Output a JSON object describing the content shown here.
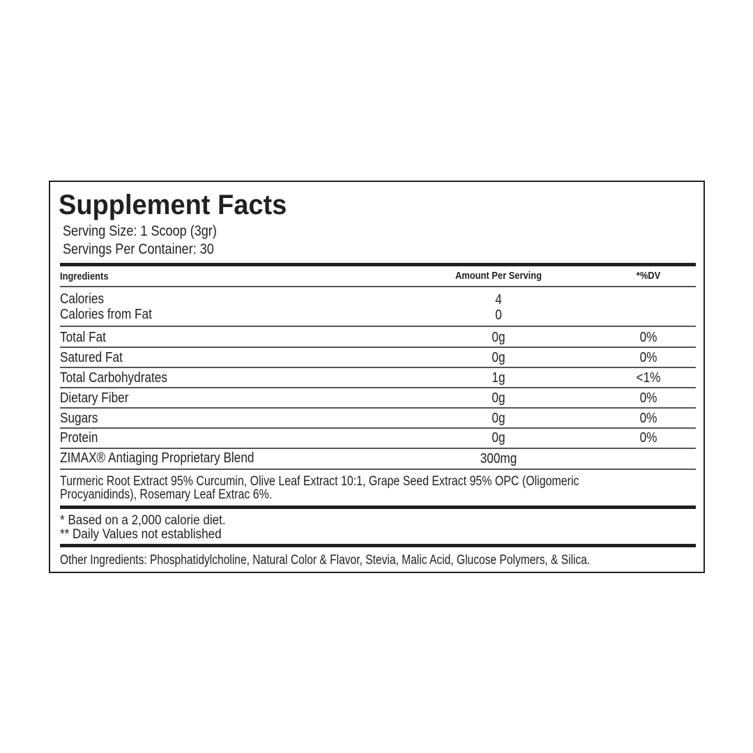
{
  "title": "Supplement Facts",
  "serving_size": "Serving Size: 1 Scoop (3gr)",
  "servings_per_container": "Servings Per Container: 30",
  "headers": {
    "ingredients": "Ingredients",
    "amount": "Amount Per Serving",
    "dv": "*%DV"
  },
  "rows": [
    {
      "name": "Calories",
      "amount": "4",
      "dv": ""
    },
    {
      "name": "Calories from Fat",
      "amount": "0",
      "dv": ""
    },
    {
      "name": "Total Fat",
      "amount": "0g",
      "dv": "0%"
    },
    {
      "name": "Satured Fat",
      "amount": "0g",
      "dv": "0%"
    },
    {
      "name": "Total Carbohydrates",
      "amount": "1g",
      "dv": "<1%"
    },
    {
      "name": "Dietary Fiber",
      "amount": "0g",
      "dv": "0%"
    },
    {
      "name": "Sugars",
      "amount": "0g",
      "dv": "0%"
    },
    {
      "name": "Protein",
      "amount": "0g",
      "dv": "0%"
    },
    {
      "name": "ZIMAX® Antiaging Proprietary Blend",
      "amount": "300mg",
      "dv": ""
    }
  ],
  "blend_ingredients": [
    "Turmeric Root Extract 95% Curcumin, Olive Leaf Extract 10:1, Grape Seed Extract 95% OPC (Oligomeric",
    "Procyanidinds), Rosemary Leaf Extrac 6%."
  ],
  "footnotes": [
    "* Based on a 2,000 calorie diet.",
    "** Daily Values not established"
  ],
  "other_ingredients": "Other Ingredients: Phosphatidylcholine, Natural Color & Flavor, Stevia, Malic Acid, Glucose Polymers, & Silica."
}
